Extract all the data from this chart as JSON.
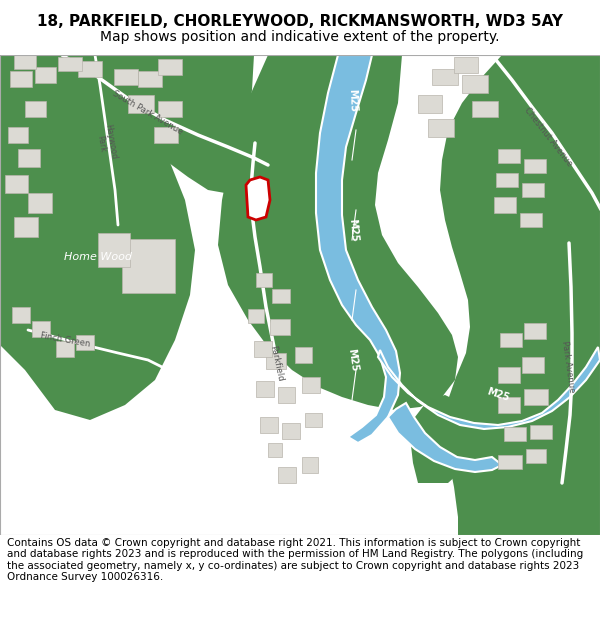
{
  "title": "18, PARKFIELD, CHORLEYWOOD, RICKMANSWORTH, WD3 5AY",
  "subtitle": "Map shows position and indicative extent of the property.",
  "footer": "Contains OS data © Crown copyright and database right 2021. This information is subject to Crown copyright and database rights 2023 and is reproduced with the permission of HM Land Registry. The polygons (including the associated geometry, namely x, y co-ordinates) are subject to Crown copyright and database rights 2023 Ordnance Survey 100026316.",
  "map_bg": "#f0eeea",
  "green_color": "#4d8f4d",
  "road_color": "#7abde0",
  "building_color": "#dcdad4",
  "building_outline": "#b8b4ac",
  "property_outline": "#cc0000",
  "property_fill": "#ffffff",
  "title_fontsize": 11,
  "subtitle_fontsize": 10,
  "footer_fontsize": 7.5
}
